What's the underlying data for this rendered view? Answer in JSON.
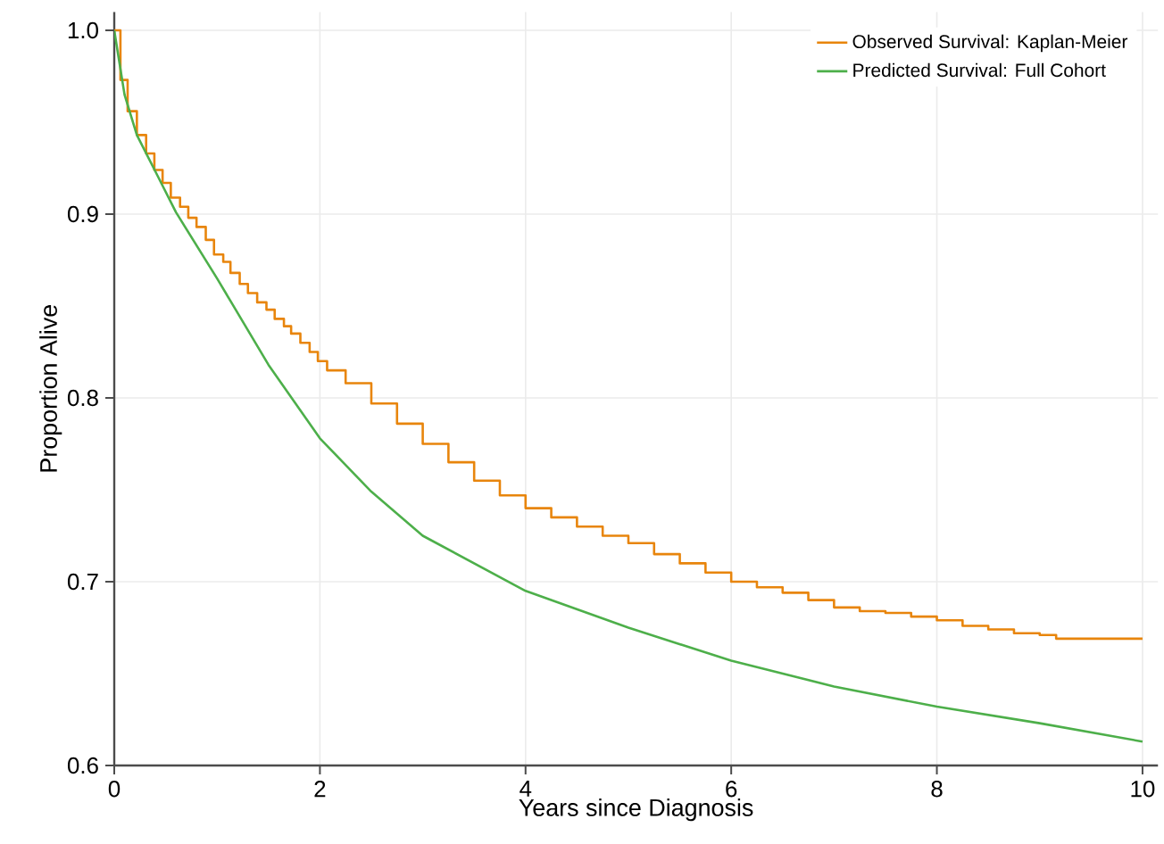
{
  "chart_data": {
    "type": "line",
    "xlabel": "Years since Diagnosis",
    "ylabel": "Proportion Alive",
    "xlim": [
      0,
      10.15
    ],
    "ylim": [
      0.6,
      1.01
    ],
    "xticks": [
      0,
      2,
      4,
      6,
      8,
      10
    ],
    "yticks": [
      0.6,
      0.7,
      0.8,
      0.9,
      {
        "value": 1.0,
        "label": "1.0"
      }
    ],
    "grid": true,
    "legend": "top right",
    "marker": "none",
    "line_style": "solid",
    "series": [
      {
        "name": "Observed Survival: Kaplan-Meier",
        "type": "step",
        "color": "#e8850c",
        "x": [
          0,
          0.06,
          0.13,
          0.22,
          0.31,
          0.39,
          0.47,
          0.55,
          0.64,
          0.72,
          0.8,
          0.89,
          0.97,
          1.06,
          1.13,
          1.22,
          1.3,
          1.39,
          1.48,
          1.56,
          1.65,
          1.72,
          1.81,
          1.9,
          1.98,
          2.07,
          2.25,
          2.5,
          2.75,
          3,
          3.25,
          3.5,
          3.75,
          4,
          4.25,
          4.5,
          4.75,
          5,
          5.25,
          5.5,
          5.75,
          6,
          6.25,
          6.5,
          6.75,
          7,
          7.25,
          7.5,
          7.75,
          8,
          8.25,
          8.5,
          8.75,
          9,
          9.16,
          10
        ],
        "values": [
          1.0,
          0.973,
          0.956,
          0.943,
          0.933,
          0.924,
          0.917,
          0.909,
          0.904,
          0.898,
          0.893,
          0.886,
          0.878,
          0.874,
          0.868,
          0.862,
          0.857,
          0.852,
          0.848,
          0.843,
          0.839,
          0.835,
          0.83,
          0.825,
          0.82,
          0.815,
          0.808,
          0.797,
          0.786,
          0.775,
          0.765,
          0.755,
          0.747,
          0.74,
          0.735,
          0.73,
          0.725,
          0.721,
          0.715,
          0.71,
          0.705,
          0.7,
          0.697,
          0.694,
          0.69,
          0.686,
          0.684,
          0.683,
          0.681,
          0.679,
          0.676,
          0.674,
          0.672,
          0.671,
          0.669,
          0.669
        ]
      },
      {
        "name": "Predicted Survival: Full Cohort",
        "type": "line",
        "color": "#4daf4a",
        "x": [
          0,
          0.1,
          0.22,
          0.42,
          0.6,
          1,
          1.5,
          2,
          2.5,
          3,
          4,
          5,
          6,
          7,
          8,
          9,
          10
        ],
        "values": [
          1.0,
          0.965,
          0.943,
          0.921,
          0.901,
          0.865,
          0.818,
          0.778,
          0.749,
          0.725,
          0.695,
          0.675,
          0.657,
          0.643,
          0.632,
          0.623,
          0.613
        ]
      }
    ]
  }
}
